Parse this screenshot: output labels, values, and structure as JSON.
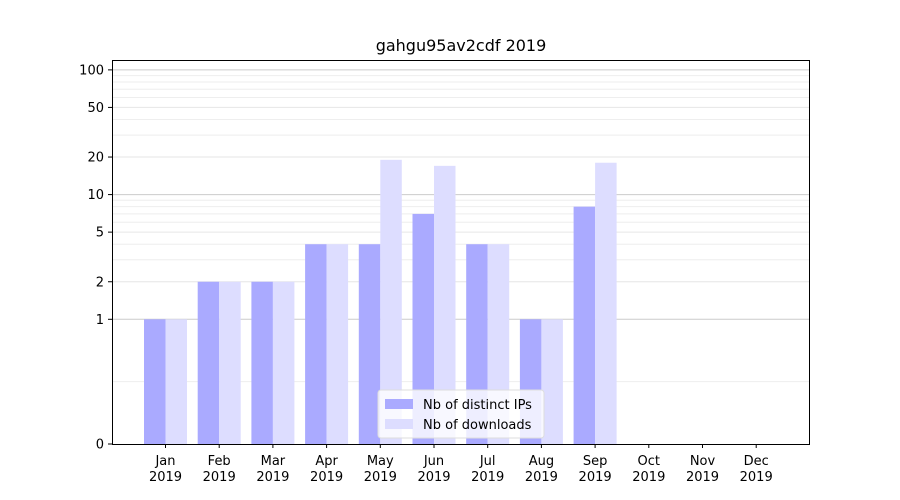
{
  "chart_data": {
    "type": "bar",
    "title": "gahgu95av2cdf 2019",
    "xlabel": "",
    "ylabel": "",
    "y_scale": "symlog",
    "ylim": [
      0,
      120
    ],
    "yticks": [
      0,
      1,
      2,
      5,
      10,
      20,
      50,
      100
    ],
    "ytick_labels": [
      "0",
      "1",
      "2",
      "5",
      "10",
      "20",
      "50",
      "100"
    ],
    "categories": [
      "Jan\n2019",
      "Feb\n2019",
      "Mar\n2019",
      "Apr\n2019",
      "May\n2019",
      "Jun\n2019",
      "Jul\n2019",
      "Aug\n2019",
      "Sep\n2019",
      "Oct\n2019",
      "Nov\n2019",
      "Dec\n2019"
    ],
    "category_lines": [
      [
        "Jan",
        "2019"
      ],
      [
        "Feb",
        "2019"
      ],
      [
        "Mar",
        "2019"
      ],
      [
        "Apr",
        "2019"
      ],
      [
        "May",
        "2019"
      ],
      [
        "Jun",
        "2019"
      ],
      [
        "Jul",
        "2019"
      ],
      [
        "Aug",
        "2019"
      ],
      [
        "Sep",
        "2019"
      ],
      [
        "Oct",
        "2019"
      ],
      [
        "Nov",
        "2019"
      ],
      [
        "Dec",
        "2019"
      ]
    ],
    "series": [
      {
        "name": "Nb of distinct IPs",
        "color": "#aaaaff",
        "values": [
          1,
          2,
          2,
          4,
          4,
          7,
          4,
          1,
          8,
          0,
          0,
          0
        ]
      },
      {
        "name": "Nb of downloads",
        "color": "#ddddff",
        "values": [
          1,
          2,
          2,
          4,
          19,
          17,
          4,
          1,
          18,
          0,
          0,
          0
        ]
      }
    ],
    "grid": true,
    "legend_position": "lower-center"
  }
}
